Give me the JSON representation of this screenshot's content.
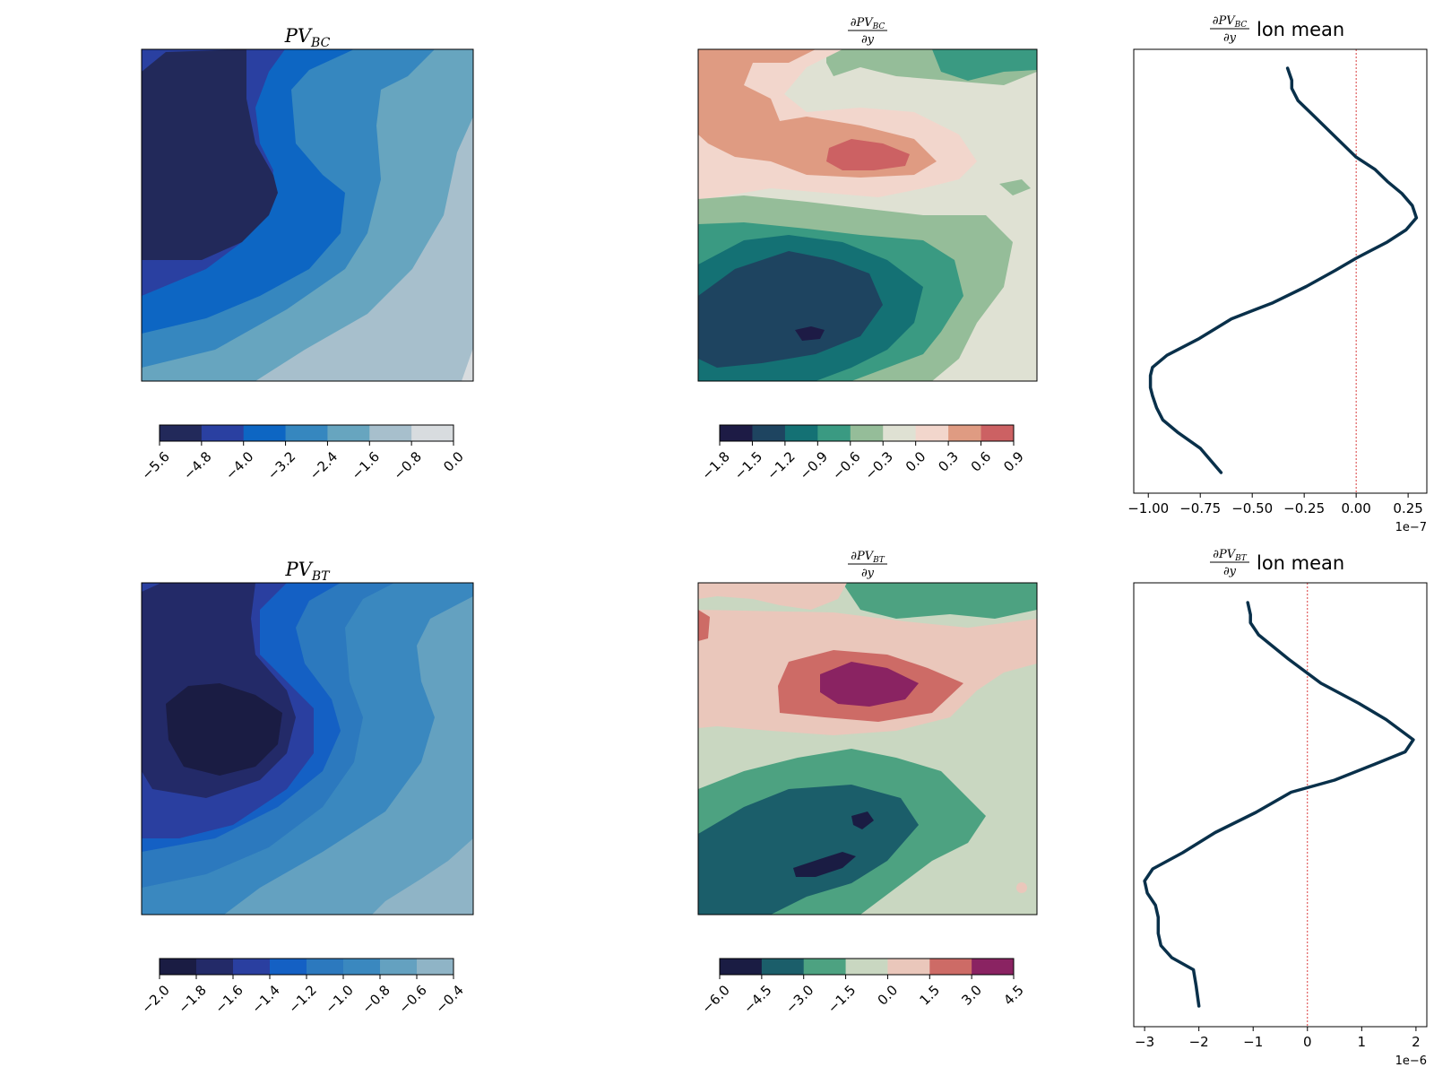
{
  "chart_data": [
    {
      "id": "pv_bc",
      "type": "heatmap",
      "title": {
        "main": "PV",
        "sub": "BC"
      },
      "colorbar": {
        "ticks": [
          "−5.6",
          "−4.8",
          "−4.0",
          "−3.2",
          "−2.4",
          "−1.6",
          "−0.8",
          "0.0"
        ],
        "colors": [
          "#22295a",
          "#2a40a1",
          "#0d66c3",
          "#3687bf",
          "#67a5bf",
          "#a7bfcc",
          "#d8dcdf"
        ]
      }
    },
    {
      "id": "dpv_bc",
      "type": "heatmap",
      "title": {
        "num_main": "∂PV",
        "num_sub": "BC",
        "den": "∂y"
      },
      "colorbar": {
        "ticks": [
          "−1.8",
          "−1.5",
          "−1.2",
          "−0.9",
          "−0.6",
          "−0.3",
          "0.0",
          "0.3",
          "0.6",
          "0.9"
        ],
        "colors": [
          "#1d1b45",
          "#1e4460",
          "#147174",
          "#3a9a82",
          "#95bd99",
          "#dfe1d3",
          "#f2d6cc",
          "#df9b82",
          "#cc6163"
        ]
      }
    },
    {
      "id": "dpv_bc_mean",
      "type": "line",
      "title": {
        "num_main": "∂PV",
        "num_sub": "BC",
        "den": "∂y",
        "suffix": "lon mean"
      },
      "xlim": [
        -1.07,
        0.34
      ],
      "xticks": [
        -1.0,
        -0.75,
        -0.5,
        -0.25,
        0.0,
        0.25
      ],
      "xtick_labels": [
        "−1.00",
        "−0.75",
        "−0.50",
        "−0.25",
        "0.00",
        "0.25"
      ],
      "exponent_label": "1e−7",
      "zero_line": 0.0,
      "series": [
        {
          "color": "#09304a",
          "x": [
            -0.33,
            -0.31,
            -0.31,
            -0.28,
            -0.2,
            -0.1,
            0.0,
            0.09,
            0.15,
            0.22,
            0.27,
            0.29,
            0.24,
            0.15,
            0.0,
            -0.1,
            -0.24,
            -0.4,
            -0.6,
            -0.76,
            -0.91,
            -0.98,
            -0.99,
            -0.99,
            -0.98,
            -0.96,
            -0.93,
            -0.86,
            -0.75,
            -0.65
          ],
          "y": [
            1.0,
            0.97,
            0.95,
            0.92,
            0.88,
            0.83,
            0.78,
            0.75,
            0.72,
            0.69,
            0.66,
            0.63,
            0.6,
            0.57,
            0.53,
            0.5,
            0.46,
            0.42,
            0.38,
            0.33,
            0.29,
            0.26,
            0.24,
            0.21,
            0.19,
            0.16,
            0.13,
            0.1,
            0.06,
            0.0
          ]
        }
      ]
    },
    {
      "id": "pv_bt",
      "type": "heatmap",
      "title": {
        "main": "PV",
        "sub": "BT"
      },
      "colorbar": {
        "ticks": [
          "−2.0",
          "−1.8",
          "−1.6",
          "−1.4",
          "−1.2",
          "−1.0",
          "−0.8",
          "−0.6",
          "−0.4"
        ],
        "colors": [
          "#1a1c43",
          "#232a68",
          "#2a3fa0",
          "#1460c4",
          "#2c79be",
          "#3a88bf",
          "#64a1c0",
          "#8fb4c6"
        ]
      }
    },
    {
      "id": "dpv_bt",
      "type": "heatmap",
      "title": {
        "num_main": "∂PV",
        "num_sub": "BT",
        "den": "∂y"
      },
      "colorbar": {
        "ticks": [
          "−6.0",
          "−4.5",
          "−3.0",
          "−1.5",
          "0.0",
          "1.5",
          "3.0",
          "4.5"
        ],
        "colors": [
          "#1a1c43",
          "#1b5e6a",
          "#4da281",
          "#c9d7c1",
          "#eac7bb",
          "#cd6b66",
          "#8a2362"
        ]
      }
    },
    {
      "id": "dpv_bt_mean",
      "type": "line",
      "title": {
        "num_main": "∂PV",
        "num_sub": "BT",
        "den": "∂y",
        "suffix": "lon mean"
      },
      "xlim": [
        -3.2,
        2.2
      ],
      "xticks": [
        -3,
        -2,
        -1,
        0,
        1,
        2
      ],
      "xtick_labels": [
        "−3",
        "−2",
        "−1",
        "0",
        "1",
        "2"
      ],
      "exponent_label": "1e−6",
      "zero_line": 0.0,
      "series": [
        {
          "color": "#09304a",
          "x": [
            -1.1,
            -1.05,
            -1.05,
            -0.9,
            -0.35,
            0.25,
            0.95,
            1.45,
            1.65,
            1.95,
            1.8,
            1.25,
            0.5,
            -0.3,
            -0.95,
            -1.7,
            -2.3,
            -2.85,
            -3.0,
            -2.95,
            -2.8,
            -2.75,
            -2.75,
            -2.7,
            -2.5,
            -2.1,
            -2.05,
            -2.0
          ],
          "y": [
            1.0,
            0.97,
            0.95,
            0.92,
            0.86,
            0.8,
            0.75,
            0.71,
            0.69,
            0.66,
            0.63,
            0.6,
            0.56,
            0.53,
            0.48,
            0.43,
            0.38,
            0.34,
            0.31,
            0.28,
            0.25,
            0.22,
            0.18,
            0.15,
            0.12,
            0.09,
            0.05,
            0.0
          ]
        }
      ]
    }
  ]
}
